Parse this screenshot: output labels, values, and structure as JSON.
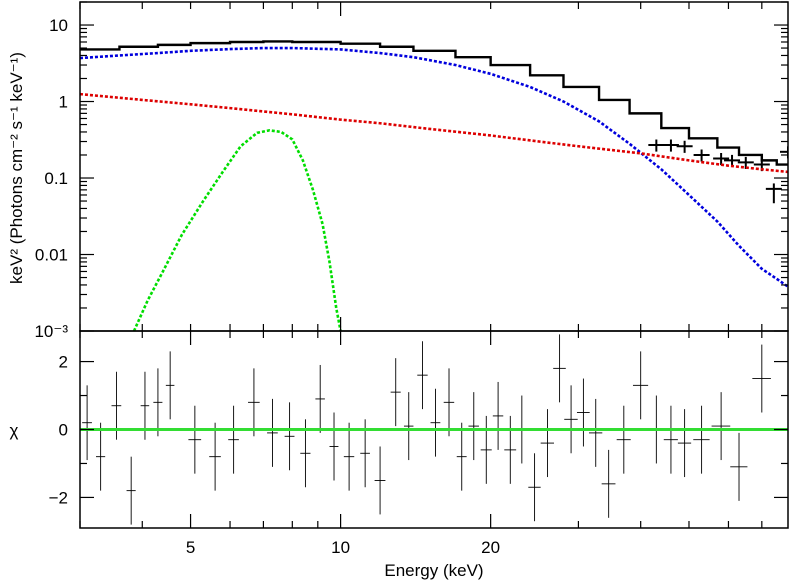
{
  "chart_data": [
    {
      "type": "line",
      "xlabel": "",
      "ylabel": "keV² (Photons cm⁻² s⁻¹ keV⁻¹)",
      "xscale": "log",
      "yscale": "log",
      "xlim": [
        3,
        79
      ],
      "ylim": [
        0.001,
        20
      ],
      "x_ticks_labels": [],
      "y_ticks": [
        {
          "value": 10,
          "label": "10"
        },
        {
          "value": 1,
          "label": "1"
        },
        {
          "value": 0.1,
          "label": "0.1"
        },
        {
          "value": 0.01,
          "label": "0.01"
        },
        {
          "value": 0.001,
          "label": "10⁻³"
        }
      ],
      "series": [
        {
          "name": "",
          "style": "step",
          "color": "#000000",
          "points": [
            [
              3.0,
              4.8
            ],
            [
              3.6,
              5.2
            ],
            [
              4.3,
              5.5
            ],
            [
              5.0,
              5.8
            ],
            [
              6.0,
              6.0
            ],
            [
              7.0,
              6.1
            ],
            [
              8.0,
              6.0
            ],
            [
              10.0,
              5.7
            ],
            [
              12.0,
              5.2
            ],
            [
              14.0,
              4.6
            ],
            [
              17.0,
              3.8
            ],
            [
              20.0,
              3.0
            ],
            [
              24.0,
              2.2
            ],
            [
              28.0,
              1.55
            ],
            [
              33.0,
              1.05
            ],
            [
              38.0,
              0.7
            ],
            [
              44.0,
              0.45
            ],
            [
              50.0,
              0.33
            ],
            [
              57.0,
              0.25
            ],
            [
              63.0,
              0.2
            ],
            [
              70.0,
              0.17
            ],
            [
              75.0,
              0.15
            ],
            [
              79.0,
              0.15
            ]
          ]
        },
        {
          "name": "",
          "style": "errorbar",
          "color": "#000000",
          "points": [
            [
              43,
              0.27
            ],
            [
              46,
              0.27
            ],
            [
              49,
              0.26
            ],
            [
              53,
              0.2
            ],
            [
              58,
              0.18
            ],
            [
              61,
              0.17
            ],
            [
              65,
              0.16
            ],
            [
              70,
              0.15
            ],
            [
              74,
              0.072
            ],
            [
              79,
              0.22
            ]
          ]
        },
        {
          "name": "",
          "style": "dotted",
          "color": "#0000dd",
          "points": [
            [
              3.0,
              3.7
            ],
            [
              3.6,
              4.0
            ],
            [
              4.3,
              4.3
            ],
            [
              5.0,
              4.6
            ],
            [
              6.0,
              4.85
            ],
            [
              7.0,
              5.0
            ],
            [
              8.0,
              5.0
            ],
            [
              10.0,
              4.8
            ],
            [
              12.0,
              4.3
            ],
            [
              14.0,
              3.8
            ],
            [
              17.0,
              3.0
            ],
            [
              20.0,
              2.3
            ],
            [
              24.0,
              1.55
            ],
            [
              28.0,
              1.0
            ],
            [
              33.0,
              0.55
            ],
            [
              38.0,
              0.28
            ],
            [
              44.0,
              0.13
            ],
            [
              50.0,
              0.06
            ],
            [
              57.0,
              0.027
            ],
            [
              63.0,
              0.013
            ],
            [
              70.0,
              0.0065
            ],
            [
              75.0,
              0.0048
            ],
            [
              79.0,
              0.0038
            ]
          ]
        },
        {
          "name": "",
          "style": "dotted",
          "color": "#dd0000",
          "points": [
            [
              3.0,
              1.25
            ],
            [
              4.0,
              1.05
            ],
            [
              5.0,
              0.92
            ],
            [
              6.0,
              0.82
            ],
            [
              8.0,
              0.68
            ],
            [
              10.0,
              0.58
            ],
            [
              12.0,
              0.52
            ],
            [
              15.0,
              0.44
            ],
            [
              20.0,
              0.36
            ],
            [
              25.0,
              0.3
            ],
            [
              30.0,
              0.26
            ],
            [
              40.0,
              0.21
            ],
            [
              50.0,
              0.17
            ],
            [
              60.0,
              0.145
            ],
            [
              70.0,
              0.13
            ],
            [
              79.0,
              0.12
            ]
          ]
        },
        {
          "name": "",
          "style": "dotted",
          "color": "#00dd00",
          "points": [
            [
              3.85,
              0.001
            ],
            [
              4.1,
              0.0025
            ],
            [
              4.4,
              0.006
            ],
            [
              4.8,
              0.018
            ],
            [
              5.3,
              0.05
            ],
            [
              5.8,
              0.12
            ],
            [
              6.3,
              0.26
            ],
            [
              6.8,
              0.39
            ],
            [
              7.2,
              0.42
            ],
            [
              7.6,
              0.4
            ],
            [
              8.0,
              0.32
            ],
            [
              8.4,
              0.17
            ],
            [
              8.8,
              0.07
            ],
            [
              9.2,
              0.025
            ],
            [
              9.5,
              0.008
            ],
            [
              9.8,
              0.002
            ],
            [
              10.0,
              0.001
            ]
          ]
        }
      ]
    },
    {
      "type": "scatter",
      "xlabel": "Energy (keV)",
      "ylabel": "χ",
      "xscale": "log",
      "xlim": [
        3,
        79
      ],
      "ylim": [
        -2.9,
        2.9
      ],
      "x_ticks": [
        {
          "value": 5,
          "label": "5"
        },
        {
          "value": 10,
          "label": "10"
        },
        {
          "value": 20,
          "label": "20"
        }
      ],
      "y_ticks": [
        {
          "value": 2,
          "label": "2"
        },
        {
          "value": 0,
          "label": "0"
        },
        {
          "value": -2,
          "label": "−2"
        }
      ],
      "reference_line": {
        "y": 0,
        "color": "#33dd33"
      },
      "residuals": [
        {
          "x": 3.1,
          "y": 0.2,
          "xe": 0.07,
          "ye": 1.1
        },
        {
          "x": 3.3,
          "y": -0.8,
          "xe": 0.07,
          "ye": 1.0
        },
        {
          "x": 3.55,
          "y": 0.7,
          "xe": 0.08,
          "ye": 1.0
        },
        {
          "x": 3.8,
          "y": -1.8,
          "xe": 0.08,
          "ye": 1.0
        },
        {
          "x": 4.05,
          "y": 0.7,
          "xe": 0.08,
          "ye": 1.0
        },
        {
          "x": 4.3,
          "y": 0.8,
          "xe": 0.09,
          "ye": 1.0
        },
        {
          "x": 4.55,
          "y": 1.3,
          "xe": 0.09,
          "ye": 1.0
        },
        {
          "x": 5.1,
          "y": -0.3,
          "xe": 0.15,
          "ye": 1.0
        },
        {
          "x": 5.6,
          "y": -0.8,
          "xe": 0.15,
          "ye": 1.0
        },
        {
          "x": 6.1,
          "y": -0.3,
          "xe": 0.15,
          "ye": 1.0
        },
        {
          "x": 6.7,
          "y": 0.8,
          "xe": 0.18,
          "ye": 1.0
        },
        {
          "x": 7.3,
          "y": -0.1,
          "xe": 0.18,
          "ye": 1.0
        },
        {
          "x": 7.9,
          "y": -0.2,
          "xe": 0.18,
          "ye": 1.0
        },
        {
          "x": 8.5,
          "y": -0.7,
          "xe": 0.2,
          "ye": 1.0
        },
        {
          "x": 9.1,
          "y": 0.9,
          "xe": 0.2,
          "ye": 1.0
        },
        {
          "x": 9.7,
          "y": -0.5,
          "xe": 0.2,
          "ye": 1.0
        },
        {
          "x": 10.4,
          "y": -0.8,
          "xe": 0.25,
          "ye": 1.0
        },
        {
          "x": 11.2,
          "y": -0.7,
          "xe": 0.25,
          "ye": 1.0
        },
        {
          "x": 12.0,
          "y": -1.5,
          "xe": 0.3,
          "ye": 1.0
        },
        {
          "x": 12.9,
          "y": 1.1,
          "xe": 0.3,
          "ye": 1.0
        },
        {
          "x": 13.7,
          "y": 0.1,
          "xe": 0.3,
          "ye": 1.0
        },
        {
          "x": 14.6,
          "y": 1.6,
          "xe": 0.35,
          "ye": 1.0
        },
        {
          "x": 15.5,
          "y": 0.2,
          "xe": 0.35,
          "ye": 1.0
        },
        {
          "x": 16.5,
          "y": 0.8,
          "xe": 0.4,
          "ye": 1.0
        },
        {
          "x": 17.5,
          "y": -0.8,
          "xe": 0.4,
          "ye": 1.0
        },
        {
          "x": 18.5,
          "y": 0.1,
          "xe": 0.45,
          "ye": 1.0
        },
        {
          "x": 19.6,
          "y": -0.6,
          "xe": 0.5,
          "ye": 1.0
        },
        {
          "x": 20.7,
          "y": 0.4,
          "xe": 0.5,
          "ye": 1.0
        },
        {
          "x": 21.9,
          "y": -0.6,
          "xe": 0.6,
          "ye": 1.0
        },
        {
          "x": 23.1,
          "y": 0.0,
          "xe": 0.6,
          "ye": 1.0
        },
        {
          "x": 24.5,
          "y": -1.7,
          "xe": 0.7,
          "ye": 1.0
        },
        {
          "x": 26.0,
          "y": -0.4,
          "xe": 0.8,
          "ye": 1.0
        },
        {
          "x": 27.5,
          "y": 1.8,
          "xe": 0.8,
          "ye": 1.0
        },
        {
          "x": 29.0,
          "y": 0.3,
          "xe": 0.9,
          "ye": 1.0
        },
        {
          "x": 30.7,
          "y": 0.5,
          "xe": 0.9,
          "ye": 1.0
        },
        {
          "x": 32.5,
          "y": -0.1,
          "xe": 1.0,
          "ye": 1.0
        },
        {
          "x": 34.5,
          "y": -1.6,
          "xe": 1.1,
          "ye": 1.0
        },
        {
          "x": 37.0,
          "y": -0.3,
          "xe": 1.2,
          "ye": 1.0
        },
        {
          "x": 40.0,
          "y": 1.3,
          "xe": 1.4,
          "ye": 1.0
        },
        {
          "x": 43.0,
          "y": 0.0,
          "xe": 1.5,
          "ye": 1.0
        },
        {
          "x": 46.0,
          "y": -0.3,
          "xe": 1.5,
          "ye": 1.0
        },
        {
          "x": 49.0,
          "y": -0.4,
          "xe": 1.5,
          "ye": 1.0
        },
        {
          "x": 53.0,
          "y": -0.3,
          "xe": 2.0,
          "ye": 1.0
        },
        {
          "x": 58.0,
          "y": 0.1,
          "xe": 2.5,
          "ye": 1.0
        },
        {
          "x": 63.0,
          "y": -1.1,
          "xe": 2.5,
          "ye": 1.0
        },
        {
          "x": 70.0,
          "y": 1.5,
          "xe": 3.0,
          "ye": 1.0
        }
      ]
    }
  ]
}
